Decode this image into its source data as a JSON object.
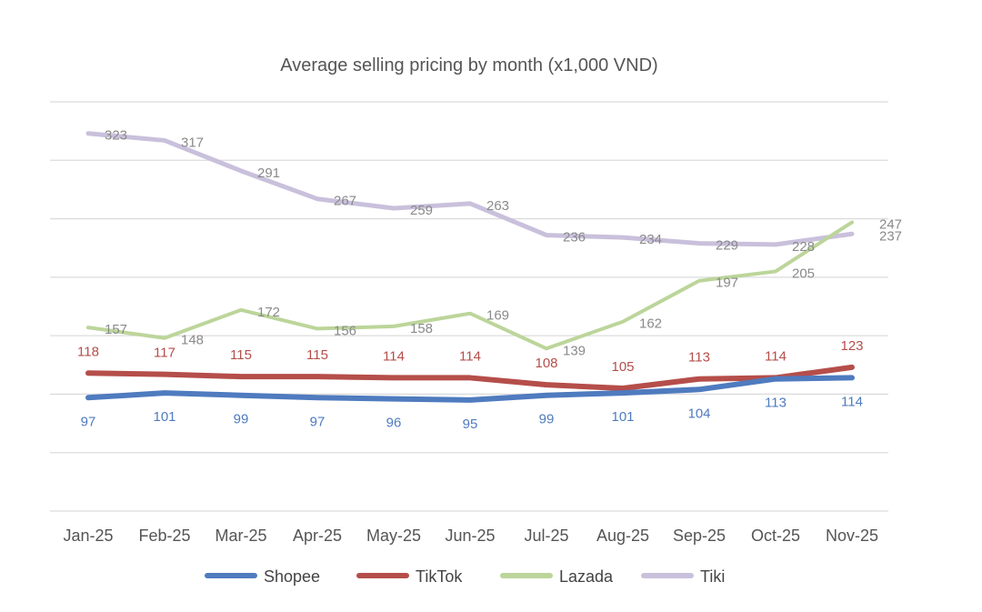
{
  "chart_data": {
    "type": "line",
    "title": "Average selling pricing by month (x1,000 VND)",
    "xlabel": "",
    "ylabel": "",
    "categories": [
      "Jan-25",
      "Feb-25",
      "Mar-25",
      "Apr-25",
      "May-25",
      "Jun-25",
      "Jul-25",
      "Aug-25",
      "Sep-25",
      "Oct-25",
      "Nov-25"
    ],
    "ylim": [
      0,
      350
    ],
    "ytick_step": 50,
    "y_tick_labels_shown": false,
    "grid": true,
    "legend_position": "bottom",
    "series": [
      {
        "name": "Shopee",
        "color": "#4f7bbf",
        "label_color": "#4f7bbf",
        "values": [
          97,
          101,
          99,
          97,
          96,
          95,
          99,
          101,
          104,
          113,
          114
        ]
      },
      {
        "name": "TikTok",
        "color": "#b54e4a",
        "label_color": "#b54e4a",
        "values": [
          118,
          117,
          115,
          115,
          114,
          114,
          108,
          105,
          113,
          114,
          123
        ]
      },
      {
        "name": "Lazada",
        "color": "#bcd59a",
        "label_color": "#8a8a8a",
        "values": [
          157,
          148,
          172,
          156,
          158,
          169,
          139,
          162,
          197,
          205,
          247
        ]
      },
      {
        "name": "Tiki",
        "color": "#c9c0dc",
        "label_color": "#8a8a8a",
        "values": [
          323,
          317,
          291,
          267,
          259,
          263,
          236,
          234,
          229,
          228,
          237
        ]
      }
    ]
  }
}
